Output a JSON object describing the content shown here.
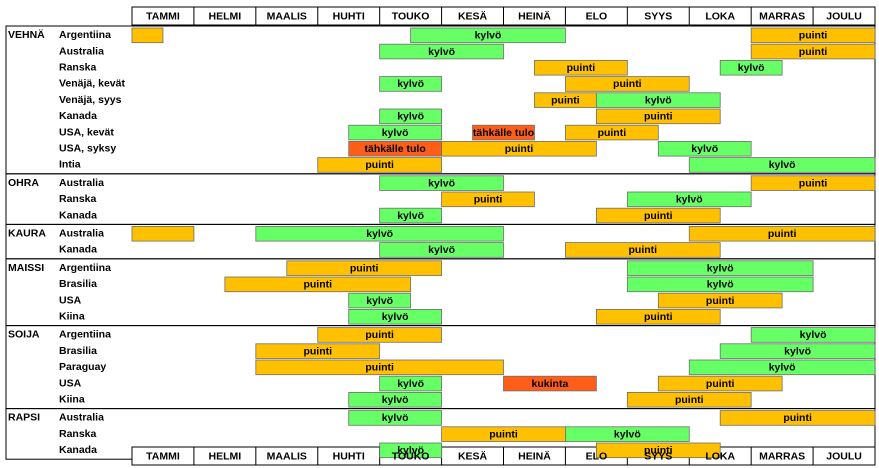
{
  "chart_data": {
    "type": "table",
    "months": [
      "TAMMI",
      "HELMI",
      "MAALIS",
      "HUHTI",
      "TOUKO",
      "KESÄ",
      "HEINÄ",
      "ELO",
      "SYYS",
      "LOKA",
      "MARRAS",
      "JOULU"
    ],
    "colors": {
      "kylvo": "#66ff66",
      "puinti": "#ffc000",
      "tahkalle": "#ff5e19",
      "kukinta": "#ff5e19",
      "border": "#000000",
      "bar_border": "#7f7f7f"
    },
    "groups": [
      {
        "name": "VEHNÄ",
        "rows": [
          {
            "label": "Argentiina",
            "bars": [
              {
                "start": 0,
                "end": 0.5,
                "type": "puinti",
                "text": ""
              },
              {
                "start": 4.5,
                "end": 7,
                "type": "kylvo",
                "text": "kylvö"
              },
              {
                "start": 10,
                "end": 12,
                "type": "puinti",
                "text": "puinti"
              }
            ]
          },
          {
            "label": "Australia",
            "bars": [
              {
                "start": 4,
                "end": 6,
                "type": "kylvo",
                "text": "kylvö"
              },
              {
                "start": 10,
                "end": 12,
                "type": "puinti",
                "text": "puinti"
              }
            ]
          },
          {
            "label": "Ranska",
            "bars": [
              {
                "start": 6.5,
                "end": 8,
                "type": "puinti",
                "text": "puinti"
              },
              {
                "start": 9.5,
                "end": 10.5,
                "type": "kylvo",
                "text": "kylvö"
              }
            ]
          },
          {
            "label": "Venäjä, kevät",
            "bars": [
              {
                "start": 4,
                "end": 5,
                "type": "kylvo",
                "text": "kylvö"
              },
              {
                "start": 7,
                "end": 9,
                "type": "puinti",
                "text": "puinti"
              }
            ]
          },
          {
            "label": "Venäjä, syys",
            "bars": [
              {
                "start": 6.5,
                "end": 7.5,
                "type": "puinti",
                "text": "puinti"
              },
              {
                "start": 7.5,
                "end": 9.5,
                "type": "kylvo",
                "text": "kylvö"
              }
            ]
          },
          {
            "label": "Kanada",
            "bars": [
              {
                "start": 4,
                "end": 5,
                "type": "kylvo",
                "text": "kylvö"
              },
              {
                "start": 7.5,
                "end": 9.5,
                "type": "puinti",
                "text": "puinti"
              }
            ]
          },
          {
            "label": "USA, kevät",
            "bars": [
              {
                "start": 3.5,
                "end": 5,
                "type": "kylvo",
                "text": "kylvö"
              },
              {
                "start": 5.5,
                "end": 6.5,
                "type": "tahkalle",
                "text": "tähkälle tulo"
              },
              {
                "start": 7,
                "end": 8.5,
                "type": "puinti",
                "text": "puinti"
              }
            ]
          },
          {
            "label": "USA, syksy",
            "bars": [
              {
                "start": 3.5,
                "end": 5,
                "type": "tahkalle",
                "text": "tähkälle tulo"
              },
              {
                "start": 5,
                "end": 7.5,
                "type": "puinti",
                "text": "puinti"
              },
              {
                "start": 8.5,
                "end": 10,
                "type": "kylvo",
                "text": "kylvö"
              }
            ]
          },
          {
            "label": "Intia",
            "bars": [
              {
                "start": 3,
                "end": 5,
                "type": "puinti",
                "text": "puinti"
              },
              {
                "start": 9,
                "end": 12,
                "type": "kylvo",
                "text": "kylvö"
              }
            ]
          }
        ]
      },
      {
        "name": "OHRA",
        "rows": [
          {
            "label": "Australia",
            "bars": [
              {
                "start": 4,
                "end": 6,
                "type": "kylvo",
                "text": "kylvö"
              },
              {
                "start": 10,
                "end": 12,
                "type": "puinti",
                "text": "puinti"
              }
            ]
          },
          {
            "label": "Ranska",
            "bars": [
              {
                "start": 5,
                "end": 6.5,
                "type": "puinti",
                "text": "puinti"
              },
              {
                "start": 8,
                "end": 10,
                "type": "kylvo",
                "text": "kylvö"
              }
            ]
          },
          {
            "label": "Kanada",
            "bars": [
              {
                "start": 4,
                "end": 5,
                "type": "kylvo",
                "text": "kylvö"
              },
              {
                "start": 7.5,
                "end": 9.5,
                "type": "puinti",
                "text": "puinti"
              }
            ]
          }
        ]
      },
      {
        "name": "KAURA",
        "rows": [
          {
            "label": "Australia",
            "bars": [
              {
                "start": 0,
                "end": 1,
                "type": "puinti",
                "text": ""
              },
              {
                "start": 2,
                "end": 6,
                "type": "kylvo",
                "text": "kylvö"
              },
              {
                "start": 9,
                "end": 12,
                "type": "puinti",
                "text": "puinti"
              }
            ]
          },
          {
            "label": "Kanada",
            "bars": [
              {
                "start": 4,
                "end": 6,
                "type": "kylvo",
                "text": "kylvö"
              },
              {
                "start": 7,
                "end": 9.5,
                "type": "puinti",
                "text": "puinti"
              }
            ]
          }
        ]
      },
      {
        "name": "MAISSI",
        "rows": [
          {
            "label": "Argentiina",
            "bars": [
              {
                "start": 2.5,
                "end": 5,
                "type": "puinti",
                "text": "puinti"
              },
              {
                "start": 8,
                "end": 11,
                "type": "kylvo",
                "text": "kylvö"
              }
            ]
          },
          {
            "label": "Brasilia",
            "bars": [
              {
                "start": 1.5,
                "end": 4.5,
                "type": "puinti",
                "text": "puinti"
              },
              {
                "start": 8,
                "end": 11,
                "type": "kylvo",
                "text": "kylvö"
              }
            ]
          },
          {
            "label": "USA",
            "bars": [
              {
                "start": 3.5,
                "end": 4.5,
                "type": "kylvo",
                "text": "kylvö"
              },
              {
                "start": 8.5,
                "end": 10.5,
                "type": "puinti",
                "text": "puinti"
              }
            ]
          },
          {
            "label": "Kiina",
            "bars": [
              {
                "start": 3.5,
                "end": 5,
                "type": "kylvo",
                "text": "kylvö"
              },
              {
                "start": 7.5,
                "end": 9.5,
                "type": "puinti",
                "text": "puinti"
              }
            ]
          }
        ]
      },
      {
        "name": "SOIJA",
        "rows": [
          {
            "label": "Argentiina",
            "bars": [
              {
                "start": 3,
                "end": 5,
                "type": "puinti",
                "text": "puinti"
              },
              {
                "start": 10,
                "end": 12,
                "type": "kylvo",
                "text": "kylvö"
              }
            ]
          },
          {
            "label": "Brasilia",
            "bars": [
              {
                "start": 2,
                "end": 4,
                "type": "puinti",
                "text": "puinti"
              },
              {
                "start": 9.5,
                "end": 12,
                "type": "kylvo",
                "text": "kylvö"
              }
            ]
          },
          {
            "label": "Paraguay",
            "bars": [
              {
                "start": 2,
                "end": 6,
                "type": "puinti",
                "text": "puinti"
              },
              {
                "start": 9,
                "end": 12,
                "type": "kylvo",
                "text": "kylvö"
              }
            ]
          },
          {
            "label": "USA",
            "bars": [
              {
                "start": 4,
                "end": 5,
                "type": "kylvo",
                "text": "kylvö"
              },
              {
                "start": 6,
                "end": 7.5,
                "type": "kukinta",
                "text": "kukinta"
              },
              {
                "start": 8.5,
                "end": 10.5,
                "type": "puinti",
                "text": "puinti"
              }
            ]
          },
          {
            "label": "Kiina",
            "bars": [
              {
                "start": 3.5,
                "end": 5,
                "type": "kylvo",
                "text": "kylvö"
              },
              {
                "start": 8,
                "end": 10,
                "type": "puinti",
                "text": "puinti"
              }
            ]
          }
        ]
      },
      {
        "name": "RAPSI",
        "rows": [
          {
            "label": "Australia",
            "bars": [
              {
                "start": 3.5,
                "end": 5,
                "type": "kylvo",
                "text": "kylvö"
              },
              {
                "start": 9.5,
                "end": 12,
                "type": "puinti",
                "text": "puinti"
              }
            ]
          },
          {
            "label": "Ranska",
            "bars": [
              {
                "start": 5,
                "end": 7,
                "type": "puinti",
                "text": "puinti"
              },
              {
                "start": 7,
                "end": 9,
                "type": "kylvo",
                "text": "kylvö"
              }
            ]
          },
          {
            "label": "Kanada",
            "bars": [
              {
                "start": 4,
                "end": 5,
                "type": "kylvo",
                "text": "kylvö"
              },
              {
                "start": 7.5,
                "end": 9.5,
                "type": "puinti",
                "text": "puinti"
              }
            ]
          }
        ]
      }
    ]
  }
}
